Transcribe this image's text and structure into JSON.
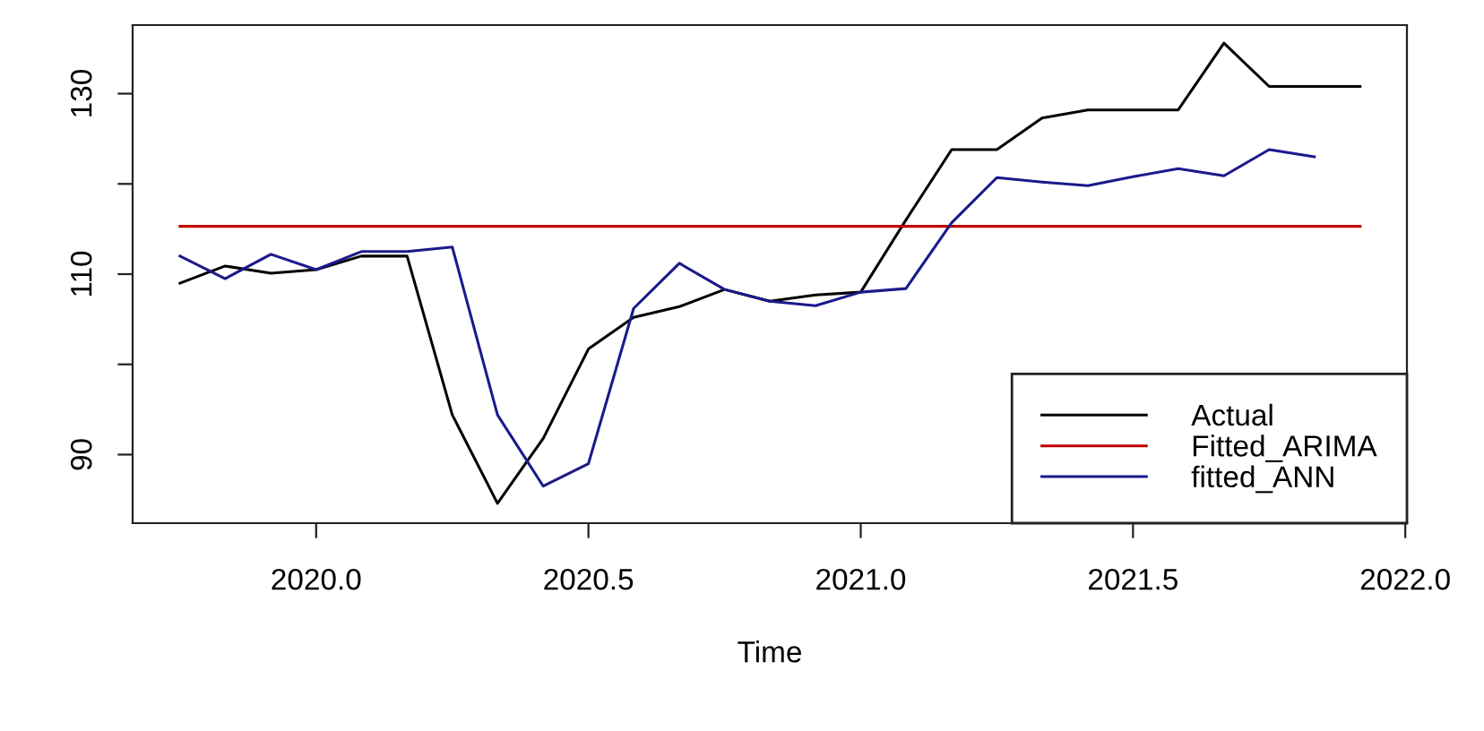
{
  "chart_data": {
    "type": "line",
    "xlabel": "Time",
    "xlim": [
      2019.663,
      2022.003
    ],
    "xticks": [
      {
        "value": 2020,
        "label": "2020.0"
      },
      {
        "value": 2020.5,
        "label": "2020.5"
      },
      {
        "value": 2021,
        "label": "2021.0"
      },
      {
        "value": 2021.5,
        "label": "2021.5"
      },
      {
        "value": 2022,
        "label": "2022.0"
      }
    ],
    "ylim": [
      82.4,
      137.6
    ],
    "yticks": [
      90,
      {
        "value": 100,
        "label": null
      },
      110,
      {
        "value": 120,
        "label": null
      },
      130
    ],
    "grid": false,
    "legend": "bottom right",
    "marker": "none",
    "line_style": "solid",
    "series": [
      {
        "name": "Actual",
        "color": "#000000",
        "x": [
          2019.75,
          2019.833,
          2019.917,
          2020.0,
          2020.083,
          2020.167,
          2020.25,
          2020.333,
          2020.417,
          2020.5,
          2020.583,
          2020.667,
          2020.75,
          2020.833,
          2020.917,
          2021.0,
          2021.083,
          2021.167,
          2021.25,
          2021.333,
          2021.417,
          2021.5,
          2021.583,
          2021.667,
          2021.75,
          2021.833,
          2021.917
        ],
        "values": [
          109.0,
          110.9,
          110.1,
          110.5,
          112.0,
          112.0,
          94.4,
          84.6,
          91.8,
          101.7,
          105.2,
          106.4,
          108.3,
          107.0,
          107.7,
          108.0,
          116.0,
          123.8,
          123.8,
          127.3,
          128.2,
          128.2,
          128.2,
          135.6,
          130.8,
          130.8,
          130.8
        ]
      },
      {
        "name": "Fitted_ARIMA",
        "color": "#c00000",
        "x": [
          2019.75,
          2021.917
        ],
        "values": [
          115.3,
          115.3
        ]
      },
      {
        "name": "fitted_ANN",
        "color": "#1a1a8c",
        "x": [
          2019.75,
          2019.833,
          2019.917,
          2020.0,
          2020.083,
          2020.167,
          2020.25,
          2020.333,
          2020.417,
          2020.5,
          2020.583,
          2020.667,
          2020.75,
          2020.833,
          2020.917,
          2021.0,
          2021.083,
          2021.167,
          2021.25,
          2021.333,
          2021.417,
          2021.5,
          2021.583,
          2021.667,
          2021.75,
          2021.833
        ],
        "values": [
          112.0,
          109.5,
          112.2,
          110.5,
          112.5,
          112.5,
          113.0,
          94.4,
          86.5,
          89.0,
          106.2,
          111.2,
          108.3,
          107.0,
          106.5,
          108.0,
          108.4,
          115.7,
          120.7,
          120.2,
          119.8,
          120.8,
          121.7,
          120.9,
          123.8,
          123.0
        ]
      }
    ]
  }
}
